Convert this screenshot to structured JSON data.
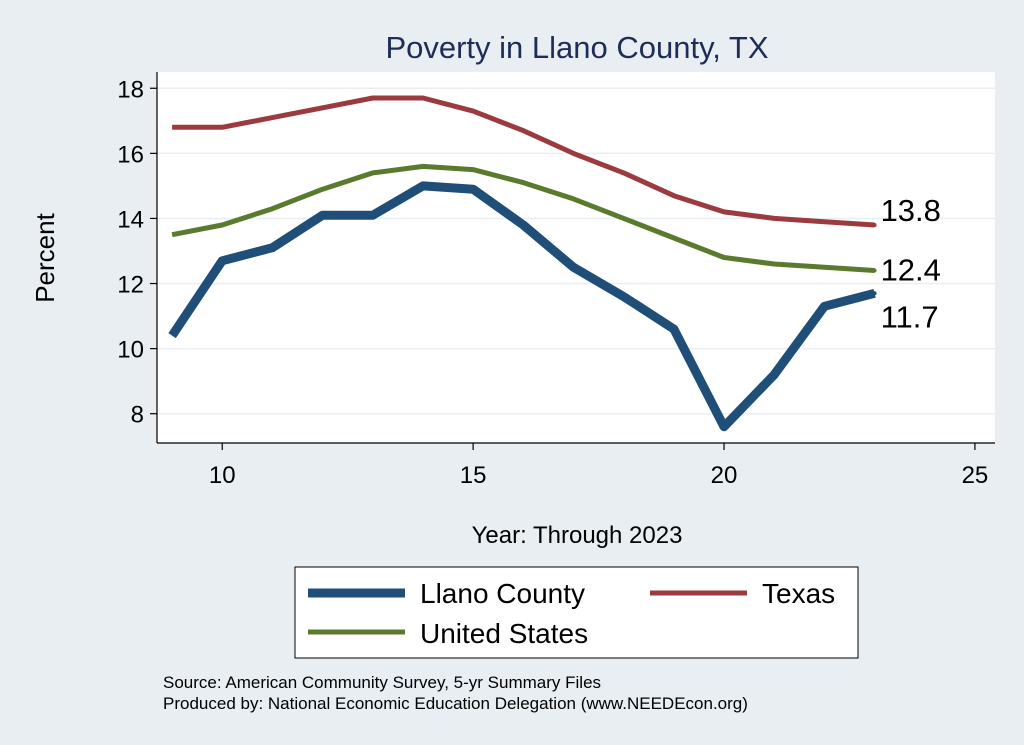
{
  "chart_data": {
    "type": "line",
    "title": "Poverty in Llano County, TX",
    "xlabel": "Year: Through 2023",
    "ylabel": "Percent",
    "xlim": [
      8.7,
      25.4
    ],
    "ylim": [
      7.1,
      18.5
    ],
    "xticks": [
      10,
      15,
      20,
      25
    ],
    "yticks": [
      8,
      10,
      12,
      14,
      16,
      18
    ],
    "grid": "horizontal",
    "legend_position": "bottom",
    "x": [
      9,
      10,
      11,
      12,
      13,
      14,
      15,
      16,
      17,
      18,
      19,
      20,
      21,
      22,
      23
    ],
    "series": [
      {
        "name": "Llano County",
        "color": "#1f4e79",
        "values": [
          10.4,
          12.7,
          13.1,
          14.1,
          14.1,
          15.0,
          14.9,
          13.8,
          12.5,
          11.6,
          10.6,
          7.6,
          9.2,
          11.3,
          11.7
        ],
        "end_label": "11.7"
      },
      {
        "name": "Texas",
        "color": "#9b3b3f",
        "values": [
          16.8,
          16.8,
          17.1,
          17.4,
          17.7,
          17.7,
          17.3,
          16.7,
          16.0,
          15.4,
          14.7,
          14.2,
          14.0,
          13.9,
          13.8
        ],
        "end_label": "13.8"
      },
      {
        "name": "United States",
        "color": "#5a7a2e",
        "values": [
          13.5,
          13.8,
          14.3,
          14.9,
          15.4,
          15.6,
          15.5,
          15.1,
          14.6,
          14.0,
          13.4,
          12.8,
          12.6,
          12.5,
          12.4
        ],
        "end_label": "12.4"
      }
    ]
  },
  "footer": {
    "source": "Source: American Community Survey, 5-yr Summary Files",
    "produced": "Produced by: National Economic Education Delegation (www.NEEDEcon.org)"
  }
}
